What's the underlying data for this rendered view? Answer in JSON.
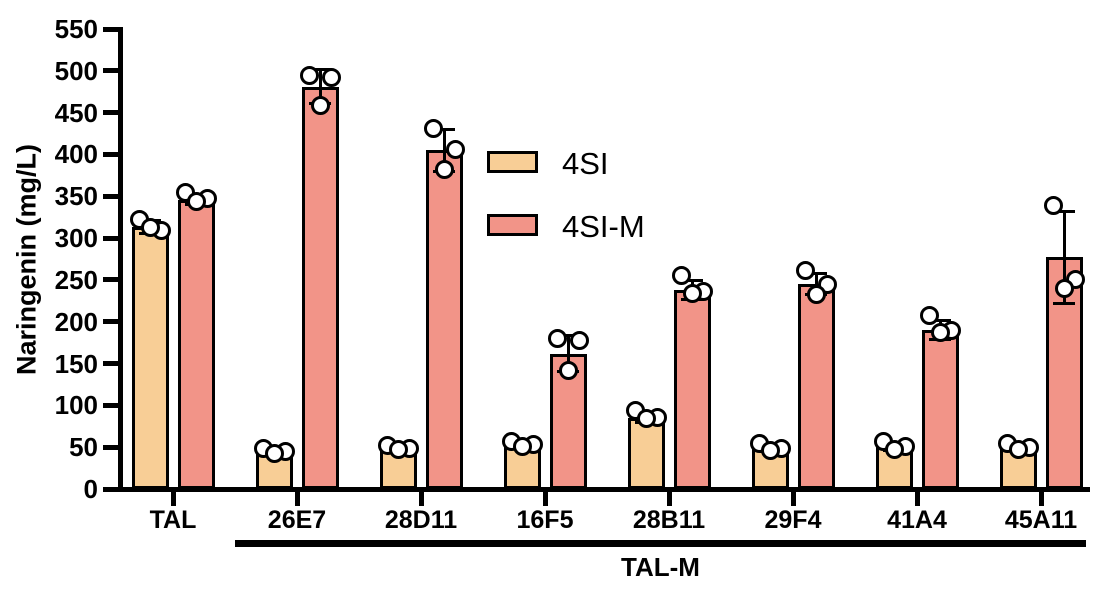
{
  "figure": {
    "background": "#FFFFFF"
  },
  "chart_data": {
    "type": "bar",
    "title": "",
    "ylabel": "Naringenin (mg/L)",
    "xlabel": "",
    "ylim": [
      0,
      550
    ],
    "ytick_step": 50,
    "yticks": [
      0,
      50,
      100,
      150,
      200,
      250,
      300,
      350,
      400,
      450,
      500,
      550
    ],
    "categories": [
      "TAL",
      "26E7",
      "28D11",
      "16F5",
      "28B11",
      "29F4",
      "41A4",
      "45A11"
    ],
    "group_bracket": {
      "label": "TAL-M",
      "start_category": "26E7",
      "end_category": "45A11"
    },
    "grid": false,
    "legend_position": "inside upper-center-left",
    "error_bars": "symmetric",
    "point_marker": {
      "shape": "open-circle",
      "fill": "#FFFFFF",
      "stroke": "#000000"
    },
    "series": [
      {
        "name": "4SI",
        "color": "#F8CE96",
        "outline": "#000000",
        "means": [
          313,
          45,
          49,
          54,
          85,
          49,
          51,
          50
        ],
        "errors": [
          8,
          4,
          3,
          3,
          5,
          4,
          5,
          4
        ],
        "points": [
          [
            322,
            309,
            313
          ],
          [
            49,
            45,
            42
          ],
          [
            52,
            49,
            47
          ],
          [
            57,
            53,
            51
          ],
          [
            94,
            86,
            84
          ],
          [
            55,
            49,
            46
          ],
          [
            57,
            51,
            47
          ],
          [
            55,
            50,
            47
          ]
        ]
      },
      {
        "name": "4SI-M",
        "color": "#F29488",
        "outline": "#000000",
        "means": [
          346,
          481,
          405,
          162,
          238,
          245,
          190,
          277
        ],
        "errors": [
          6,
          20,
          25,
          21,
          11,
          13,
          11,
          55
        ],
        "points": [
          [
            355,
            347,
            344
          ],
          [
            494,
            492,
            458
          ],
          [
            431,
            406,
            382
          ],
          [
            180,
            177,
            142
          ],
          [
            255,
            236,
            234
          ],
          [
            261,
            244,
            232
          ],
          [
            208,
            189,
            187
          ],
          [
            339,
            251,
            240
          ]
        ]
      }
    ]
  }
}
